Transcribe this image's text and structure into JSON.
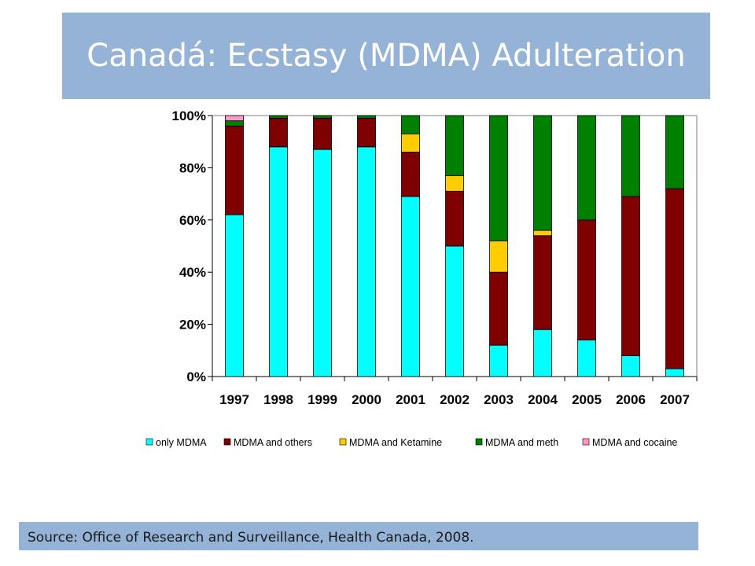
{
  "title": "Canadá: Ecstasy (MDMA) Adulteration",
  "source": "Source: Office of Research and Surveillance,  Health Canada, 2008.",
  "chart_data": {
    "type": "bar",
    "stacked": true,
    "percent": true,
    "categories": [
      "1997",
      "1998",
      "1999",
      "2000",
      "2001",
      "2002",
      "2003",
      "2004",
      "2005",
      "2006",
      "2007"
    ],
    "ylim": [
      0,
      100
    ],
    "yticks": [
      0,
      20,
      40,
      60,
      80,
      100
    ],
    "ytick_labels": [
      "0%",
      "20%",
      "40%",
      "60%",
      "80%",
      "100%"
    ],
    "grid": false,
    "legend_position": "bottom",
    "series": [
      {
        "name": "only MDMA",
        "color": "#00ffff",
        "values": [
          62,
          88,
          87,
          88,
          69,
          50,
          12,
          18,
          14,
          8,
          3
        ]
      },
      {
        "name": "MDMA and others",
        "color": "#800000",
        "values": [
          34,
          11,
          12,
          11,
          17,
          21,
          28,
          36,
          46,
          61,
          69
        ]
      },
      {
        "name": "MDMA and Ketamine",
        "color": "#ffcc00",
        "values": [
          0,
          0,
          0,
          0,
          7,
          6,
          12,
          2,
          0,
          0,
          0
        ]
      },
      {
        "name": "MDMA and meth",
        "color": "#008000",
        "values": [
          2,
          1,
          1,
          1,
          7,
          23,
          48,
          44,
          40,
          31,
          28
        ]
      },
      {
        "name": "MDMA and cocaine",
        "color": "#ff99cc",
        "values": [
          2,
          0,
          0,
          0,
          0,
          0,
          0,
          0,
          0,
          0,
          0
        ]
      }
    ]
  }
}
